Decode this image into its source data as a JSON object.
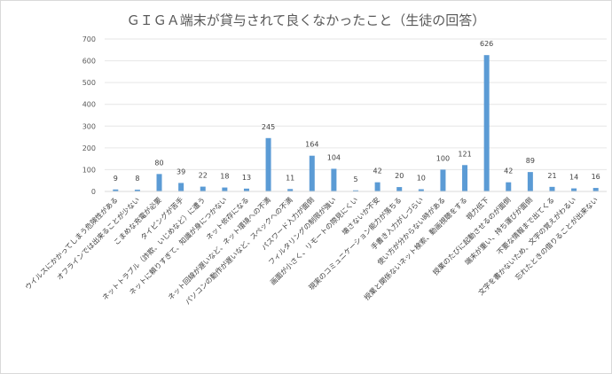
{
  "chart_data": {
    "type": "bar",
    "title": "ＧＩＧＡ端末が貸与されて良くなかったこと（生徒の回答）",
    "xlabel": "",
    "ylabel": "",
    "ylim": [
      0,
      700
    ],
    "yticks": [
      "0",
      "100",
      "200",
      "300",
      "400",
      "500",
      "600",
      "700"
    ],
    "grid": "horizontal",
    "legend": "none",
    "bar_color": "#5b9bd5",
    "categories": [
      "ウイルスにかかってしまう危険性がある",
      "オフラインでは出来ることが少ない",
      "こまめな充電が必要",
      "タイピングが苦手",
      "ネットトラブル（詐欺、いじめなど）に遭う",
      "ネットに頼りすぎて、知識が身につかない",
      "ネット依存になる",
      "ネット回線が遅いなど、ネット環境への不満",
      "パソコンの動作が遅いなど、スペックへの不満",
      "パスワード入力が面倒",
      "フィルタリングの制限が強い",
      "画面が小さく、リモートの際見にくい",
      "壊さないか不安",
      "現実のコミュニケーション能力が落ちる",
      "手書き入力がしづらい",
      "使い方が分からない時がある",
      "授業と関係ないネット検索、動画視聴をする",
      "視力低下",
      "授業のたびに起動させるのが面倒",
      "端末が重い、持ち運びが面倒",
      "不要な情報まで出てくる",
      "文字を書かないため、文字の覚えがわるい",
      "忘れたときの借りることが出来ない"
    ],
    "values": [
      9,
      8,
      80,
      39,
      22,
      18,
      13,
      245,
      11,
      164,
      104,
      5,
      42,
      20,
      10,
      100,
      121,
      626,
      42,
      89,
      21,
      14,
      16
    ],
    "data_labels": [
      "9",
      "8",
      "80",
      "39",
      "22",
      "18",
      "13",
      "245",
      "11",
      "164",
      "104",
      "5",
      "42",
      "20",
      "10",
      "100",
      "121",
      "626",
      "42",
      "89",
      "21",
      "14",
      "16"
    ]
  }
}
